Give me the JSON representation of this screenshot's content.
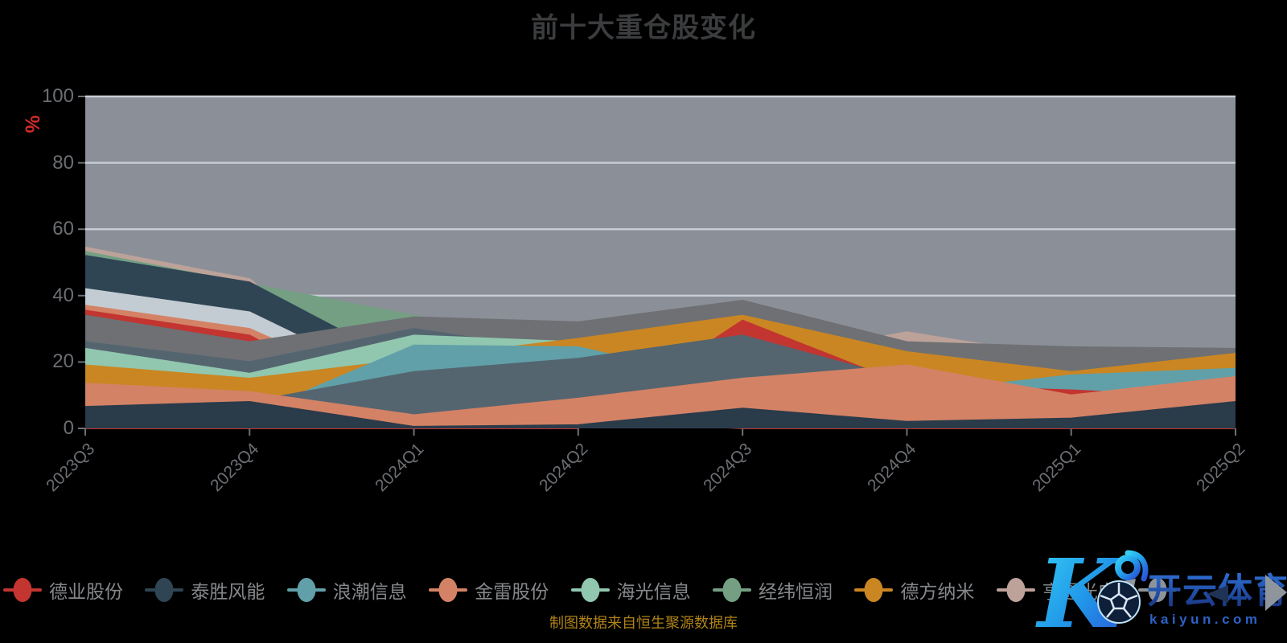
{
  "title": "前十大重仓股变化",
  "source_note": "制图数据来自恒生聚源数据库",
  "y_axis": {
    "name": "%",
    "ticks": [
      0,
      20,
      40,
      60,
      80,
      100
    ],
    "max": 100
  },
  "x_axis": {
    "categories": [
      "2023Q3",
      "2023Q4",
      "2024Q1",
      "2024Q2",
      "2024Q3",
      "2024Q4",
      "2025Q1",
      "2025Q2"
    ]
  },
  "legend": {
    "items": [
      {
        "label": "德业股份",
        "color": "#c23531"
      },
      {
        "label": "泰胜风能",
        "color": "#2f4554"
      },
      {
        "label": "浪潮信息",
        "color": "#61a0a8"
      },
      {
        "label": "金雷股份",
        "color": "#d48265"
      },
      {
        "label": "海光信息",
        "color": "#91c7ae"
      },
      {
        "label": "经纬恒润",
        "color": "#749f83"
      },
      {
        "label": "德方纳米",
        "color": "#ca8622"
      },
      {
        "label": "亨通光电",
        "color": "#bda29a"
      },
      {
        "label": "",
        "color": "#8f949a"
      }
    ]
  },
  "watermark": {
    "logo_letter": "K",
    "brand": "开云体育",
    "domain": "kaiyun.com"
  },
  "colors": {
    "background": "#000000",
    "plot_bg": "#8b8f98",
    "gridline": "#c9cdd5",
    "title": "#3b3c3e",
    "axis_label": "#6b6e73",
    "tick": "#6d7177",
    "legend_label": "#85878a",
    "percent_label": "#cc2a28",
    "source_note": "#b08316",
    "watermark_blue": "#2356b8"
  },
  "chart_data": {
    "type": "area",
    "title": "前十大重仓股变化",
    "categories": [
      "2023Q3",
      "2023Q4",
      "2024Q1",
      "2024Q2",
      "2024Q3",
      "2024Q4",
      "2025Q1",
      "2025Q2"
    ],
    "xlabel": "",
    "ylabel": "%",
    "ylim": [
      0,
      100
    ],
    "grid": true,
    "legend_position": "bottom",
    "values_estimated": true,
    "note": "Overlapping (non-stacked) area series; % of fund holdings. Values estimated from pixels.",
    "series": [
      {
        "name": "德业股份",
        "color": "#c23531",
        "values": [
          35.5,
          28,
          1.5,
          2.5,
          32.5,
          13,
          11.5,
          9
        ]
      },
      {
        "name": "泰胜风能",
        "color": "#2f4554",
        "values": [
          52,
          44,
          18,
          22,
          30.5,
          25,
          13,
          23
        ]
      },
      {
        "name": "浪潮信息",
        "color": "#61a0a8",
        "values": [
          6,
          4,
          25,
          24.5,
          13,
          10.5,
          16,
          18
        ]
      },
      {
        "name": "金雷股份",
        "color": "#d48265",
        "values": [
          37,
          30,
          8,
          17,
          31,
          21,
          12,
          16
        ]
      },
      {
        "name": "海光信息",
        "color": "#91c7ae",
        "values": [
          24,
          16.5,
          28,
          26,
          25.5,
          21.5,
          15,
          9
        ]
      },
      {
        "name": "经纬恒润",
        "color": "#749f83",
        "values": [
          53.2,
          43.5,
          34,
          24,
          26,
          20,
          22,
          23.5
        ]
      },
      {
        "name": "德方纳米",
        "color": "#ca8622",
        "values": [
          19,
          15,
          21,
          27,
          34,
          23,
          17,
          22.5
        ]
      },
      {
        "name": "亨通光电",
        "color": "#bda29a",
        "values": [
          54.5,
          45,
          5,
          14,
          20,
          29,
          21,
          20
        ]
      },
      {
        "name": "",
        "color": "#6e7074",
        "values": [
          34,
          26,
          33.5,
          32,
          38.5,
          26,
          24.5,
          24
        ]
      }
    ],
    "render_series": [
      {
        "color": "#bda29a",
        "values": [
          54.5,
          45,
          5,
          14,
          20,
          29,
          21,
          20
        ]
      },
      {
        "color": "#749f83",
        "values": [
          53.2,
          43.5,
          34,
          24,
          26,
          20,
          22,
          23.5
        ]
      },
      {
        "color": "#2f4554",
        "values": [
          52,
          44,
          18,
          22,
          30.5,
          25,
          13,
          23
        ]
      },
      {
        "color": "#c4ccd3",
        "values": [
          42,
          35,
          11,
          20.5,
          23,
          18.5,
          19.5,
          21
        ]
      },
      {
        "color": "#d48265",
        "values": [
          37,
          30,
          8,
          17,
          31,
          21,
          12,
          16
        ]
      },
      {
        "color": "#c23531",
        "values": [
          35.5,
          28,
          1.5,
          2.5,
          0,
          0,
          0,
          0
        ]
      },
      {
        "color": "#6e7074",
        "values": [
          34,
          26,
          33.5,
          32,
          38.5,
          26,
          24.5,
          24
        ]
      },
      {
        "color": "#546570",
        "values": [
          26,
          20,
          30,
          22.5,
          24,
          17,
          8,
          12
        ]
      },
      {
        "color": "#91c7ae",
        "values": [
          24,
          16.5,
          28,
          26,
          25.5,
          21.5,
          15,
          9
        ]
      },
      {
        "color": "#ca8622",
        "values": [
          19,
          15,
          21,
          27,
          34,
          23,
          17,
          22.5
        ]
      },
      {
        "color": "#61a0a8",
        "values": [
          6,
          4,
          25,
          24.5,
          13,
          10.5,
          16,
          18
        ]
      },
      {
        "color": "#c23531",
        "values": [
          0,
          0,
          0,
          0,
          32.5,
          13,
          11.5,
          9
        ]
      },
      {
        "color": "#546570",
        "values": [
          5,
          8,
          17,
          21,
          28,
          14.5,
          6,
          14
        ]
      },
      {
        "color": "#d48265",
        "values": [
          13.5,
          11,
          4,
          9,
          15,
          19,
          10,
          15.5
        ]
      },
      {
        "color": "#2a3b4a",
        "values": [
          6.5,
          8,
          0.5,
          1,
          6,
          2,
          3,
          8
        ]
      }
    ]
  }
}
